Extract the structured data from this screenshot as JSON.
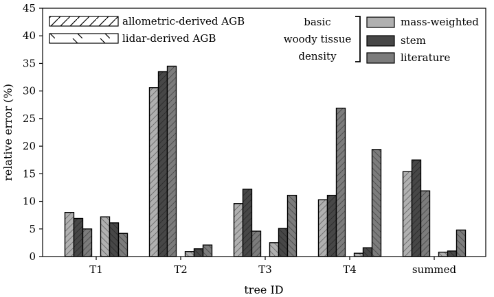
{
  "chart_data": {
    "type": "bar",
    "xlabel": "tree ID",
    "ylabel": "relative error (%)",
    "ylim": [
      0,
      45
    ],
    "yticks": [
      0,
      5,
      10,
      15,
      20,
      25,
      30,
      35,
      40,
      45
    ],
    "grid": false,
    "categories": [
      "T1",
      "T2",
      "T3",
      "T4",
      "summed"
    ],
    "hatch_legend": [
      {
        "label": "allometric-derived AGB",
        "hatch": "forward-slash"
      },
      {
        "label": "lidar-derived AGB",
        "hatch": "back-slash"
      }
    ],
    "density_legend_title": [
      "basic",
      "woody tissue",
      "density"
    ],
    "series": [
      {
        "name": "mass-weighted",
        "method": "allometric-derived AGB",
        "color": "#b0b0b0",
        "values": [
          8.0,
          30.6,
          9.6,
          10.3,
          15.4
        ]
      },
      {
        "name": "stem",
        "method": "allometric-derived AGB",
        "color": "#474747",
        "values": [
          6.9,
          33.5,
          12.2,
          11.1,
          17.5
        ]
      },
      {
        "name": "literature",
        "method": "allometric-derived AGB",
        "color": "#7c7c7c",
        "values": [
          5.0,
          34.5,
          4.6,
          26.9,
          11.9
        ]
      },
      {
        "name": "mass-weighted",
        "method": "lidar-derived AGB",
        "color": "#b0b0b0",
        "values": [
          7.2,
          0.9,
          2.5,
          0.6,
          0.8
        ]
      },
      {
        "name": "stem",
        "method": "lidar-derived AGB",
        "color": "#474747",
        "values": [
          6.1,
          1.4,
          5.1,
          1.6,
          1.0
        ]
      },
      {
        "name": "literature",
        "method": "lidar-derived AGB",
        "color": "#7c7c7c",
        "values": [
          4.2,
          2.1,
          11.1,
          19.4,
          4.8
        ]
      }
    ]
  }
}
